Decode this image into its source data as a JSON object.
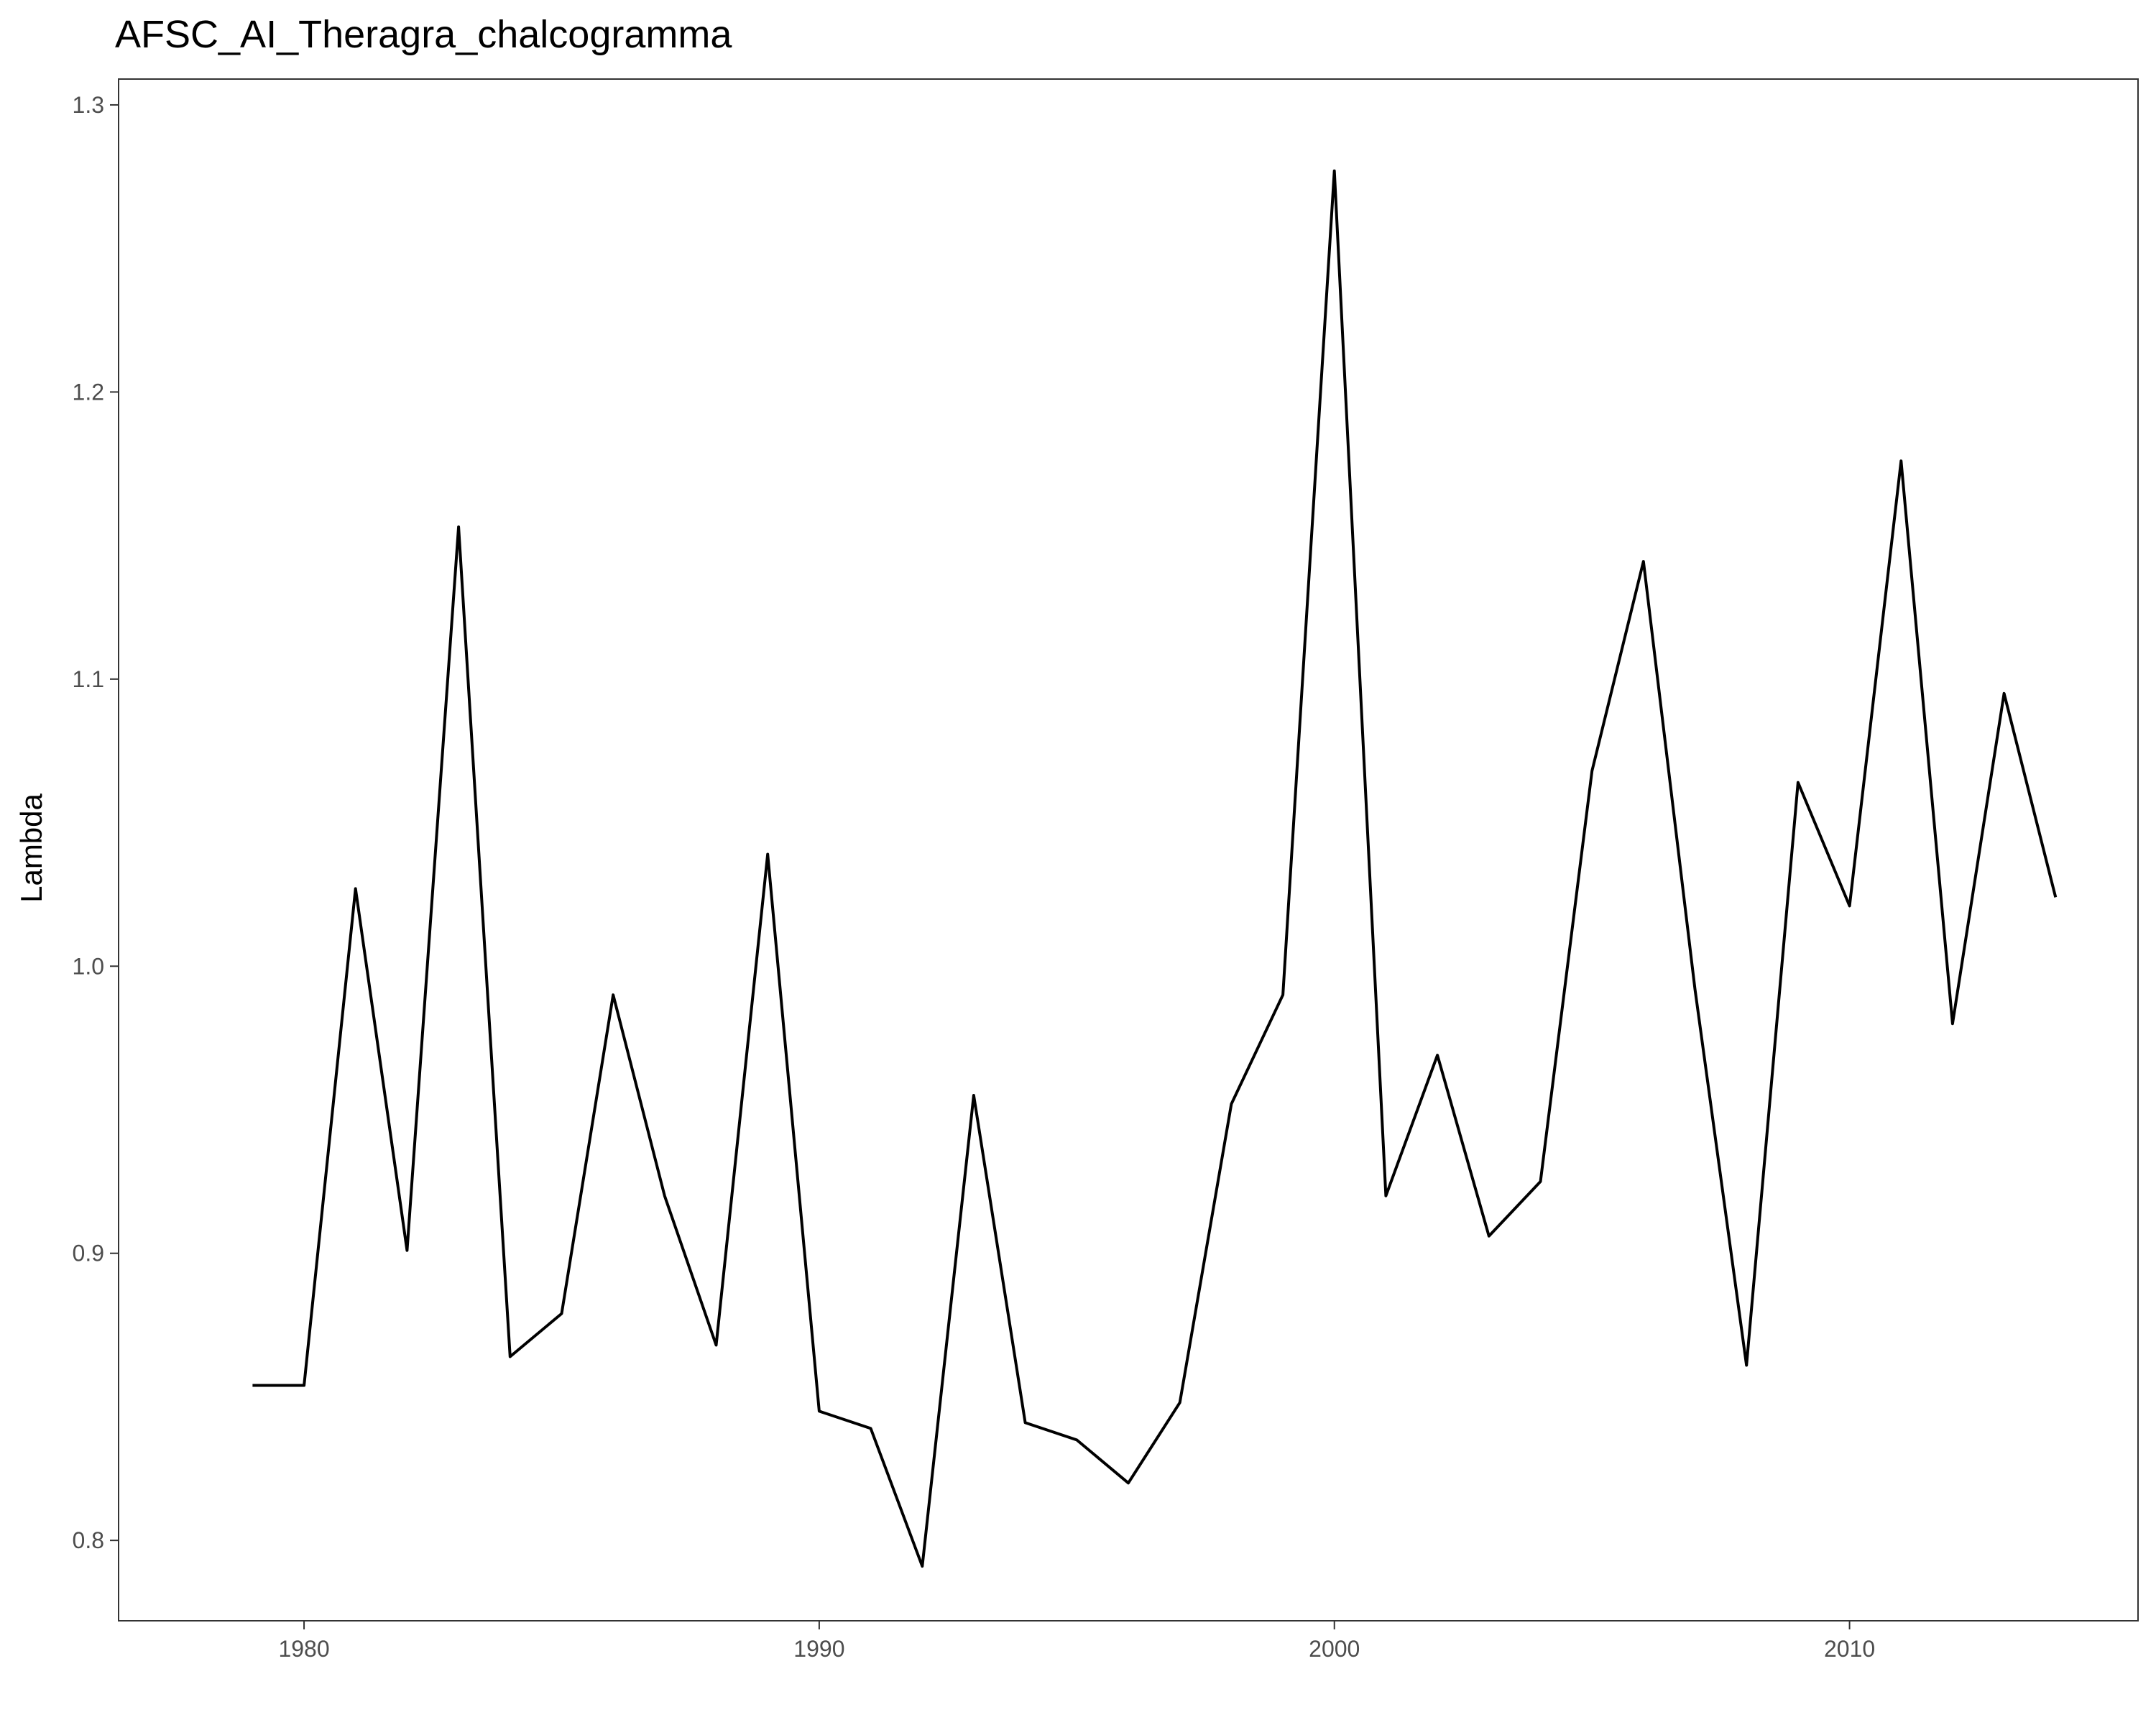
{
  "chart_data": {
    "type": "line",
    "title": "AFSC_AI_Theragra_chalcogramma",
    "xlabel": "",
    "ylabel": "Lambda",
    "xlim": [
      1976.4,
      2015.6
    ],
    "ylim": [
      0.772,
      1.309
    ],
    "xticks": [
      1980,
      1990,
      2000,
      2010
    ],
    "yticks": [
      0.8,
      0.9,
      1.0,
      1.1,
      1.2,
      1.3
    ],
    "ytick_labels": [
      "0.8",
      "0.9",
      "1.0",
      "1.1",
      "1.2",
      "1.3"
    ],
    "grid": false,
    "legend": "none",
    "line_color": "#000000",
    "x": [
      1979,
      1980,
      1981,
      1982,
      1983,
      1984,
      1985,
      1986,
      1987,
      1988,
      1989,
      1990,
      1991,
      1992,
      1993,
      1994,
      1995,
      1996,
      1997,
      1998,
      1999,
      2000,
      2001,
      2002,
      2003,
      2004,
      2005,
      2006,
      2007,
      2008,
      2009,
      2010,
      2011,
      2012,
      2013,
      2014
    ],
    "y": [
      0.854,
      0.854,
      1.027,
      0.901,
      1.153,
      0.864,
      0.879,
      0.99,
      0.92,
      0.868,
      1.039,
      0.845,
      0.839,
      0.791,
      0.955,
      0.841,
      0.835,
      0.82,
      0.848,
      0.952,
      0.99,
      1.277,
      0.92,
      0.969,
      0.906,
      0.925,
      1.068,
      1.141,
      0.992,
      0.861,
      1.064,
      1.021,
      1.176,
      0.98,
      1.095,
      1.024
    ]
  }
}
